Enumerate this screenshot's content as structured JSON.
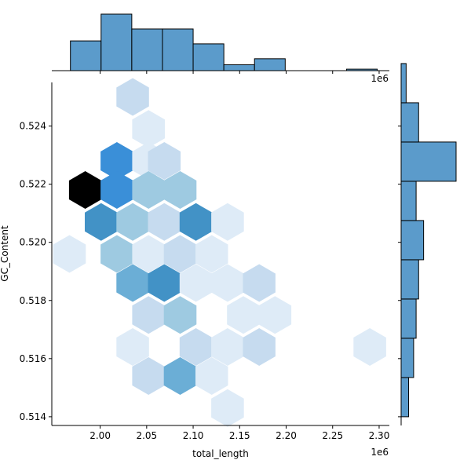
{
  "colors": {
    "bar_fill": "#5b9bcb",
    "bar_stroke": "#000000",
    "hex_palette": [
      "#deebf7",
      "#c6dbef",
      "#9ecae1",
      "#6baed6",
      "#4292c6",
      "#3a8fd8",
      "#2171b5",
      "#000000"
    ]
  },
  "chart_data": {
    "type": "hexbin",
    "subtype": "jointplot",
    "xlabel": "total_length",
    "ylabel": "GC_Content",
    "x_offset_label": "1e6",
    "top_offset_label": "1e6",
    "xlim": [
      1.948,
      2.311
    ],
    "ylim": [
      0.5137,
      0.5255
    ],
    "x_ticks": [
      {
        "value": 2.0,
        "label": "2.00"
      },
      {
        "value": 2.05,
        "label": "2.05"
      },
      {
        "value": 2.1,
        "label": "2.10"
      },
      {
        "value": 2.15,
        "label": "2.15"
      },
      {
        "value": 2.2,
        "label": "2.20"
      },
      {
        "value": 2.25,
        "label": "2.25"
      },
      {
        "value": 2.3,
        "label": "2.30"
      }
    ],
    "y_ticks": [
      {
        "value": 0.514,
        "label": "0.514"
      },
      {
        "value": 0.516,
        "label": "0.516"
      },
      {
        "value": 0.518,
        "label": "0.518"
      },
      {
        "value": 0.52,
        "label": "0.520"
      },
      {
        "value": 0.522,
        "label": "0.522"
      },
      {
        "value": 0.524,
        "label": "0.524"
      }
    ],
    "hexbins": [
      {
        "x": 2.035,
        "y": 0.525,
        "count": 2
      },
      {
        "x": 2.052,
        "y": 0.5239,
        "count": 1
      },
      {
        "x": 2.018,
        "y": 0.5228,
        "count": 6
      },
      {
        "x": 2.052,
        "y": 0.5228,
        "count": 1
      },
      {
        "x": 2.069,
        "y": 0.5228,
        "count": 2
      },
      {
        "x": 1.984,
        "y": 0.5218,
        "count": 8
      },
      {
        "x": 2.018,
        "y": 0.5218,
        "count": 6
      },
      {
        "x": 2.052,
        "y": 0.5218,
        "count": 3
      },
      {
        "x": 2.086,
        "y": 0.5218,
        "count": 3
      },
      {
        "x": 2.001,
        "y": 0.5207,
        "count": 5
      },
      {
        "x": 2.035,
        "y": 0.5207,
        "count": 3
      },
      {
        "x": 2.069,
        "y": 0.5207,
        "count": 2
      },
      {
        "x": 2.103,
        "y": 0.5207,
        "count": 5
      },
      {
        "x": 2.137,
        "y": 0.5207,
        "count": 1
      },
      {
        "x": 1.967,
        "y": 0.5196,
        "count": 1
      },
      {
        "x": 2.018,
        "y": 0.5196,
        "count": 3
      },
      {
        "x": 2.052,
        "y": 0.5196,
        "count": 1
      },
      {
        "x": 2.086,
        "y": 0.5196,
        "count": 2
      },
      {
        "x": 2.12,
        "y": 0.5196,
        "count": 1
      },
      {
        "x": 2.035,
        "y": 0.5186,
        "count": 4
      },
      {
        "x": 2.069,
        "y": 0.5186,
        "count": 5
      },
      {
        "x": 2.103,
        "y": 0.5186,
        "count": 1
      },
      {
        "x": 2.137,
        "y": 0.5186,
        "count": 1
      },
      {
        "x": 2.171,
        "y": 0.5186,
        "count": 2
      },
      {
        "x": 2.052,
        "y": 0.5175,
        "count": 2
      },
      {
        "x": 2.086,
        "y": 0.5175,
        "count": 3
      },
      {
        "x": 2.154,
        "y": 0.5175,
        "count": 1
      },
      {
        "x": 2.188,
        "y": 0.5175,
        "count": 1
      },
      {
        "x": 2.035,
        "y": 0.5164,
        "count": 1
      },
      {
        "x": 2.103,
        "y": 0.5164,
        "count": 2
      },
      {
        "x": 2.137,
        "y": 0.5164,
        "count": 1
      },
      {
        "x": 2.171,
        "y": 0.5164,
        "count": 2
      },
      {
        "x": 2.29,
        "y": 0.5164,
        "count": 1
      },
      {
        "x": 2.052,
        "y": 0.5154,
        "count": 2
      },
      {
        "x": 2.086,
        "y": 0.5154,
        "count": 4
      },
      {
        "x": 2.12,
        "y": 0.5154,
        "count": 1
      },
      {
        "x": 2.137,
        "y": 0.5143,
        "count": 1
      }
    ],
    "top_histogram": {
      "bins": [
        {
          "x0": 1.968,
          "x1": 2.001,
          "count": 10
        },
        {
          "x0": 2.001,
          "x1": 2.034,
          "count": 19
        },
        {
          "x0": 2.034,
          "x1": 2.067,
          "count": 14
        },
        {
          "x0": 2.067,
          "x1": 2.1,
          "count": 14
        },
        {
          "x0": 2.1,
          "x1": 2.133,
          "count": 9
        },
        {
          "x0": 2.133,
          "x1": 2.166,
          "count": 2
        },
        {
          "x0": 2.166,
          "x1": 2.199,
          "count": 4
        },
        {
          "x0": 2.199,
          "x1": 2.232,
          "count": 0
        },
        {
          "x0": 2.232,
          "x1": 2.265,
          "count": 0
        },
        {
          "x0": 2.265,
          "x1": 2.298,
          "count": 0.5
        }
      ],
      "ymax": 19
    },
    "right_histogram": {
      "bins": [
        {
          "y0": 0.514,
          "y1": 0.51535,
          "count": 3
        },
        {
          "y0": 0.51535,
          "y1": 0.5167,
          "count": 5
        },
        {
          "y0": 0.5167,
          "y1": 0.51805,
          "count": 6
        },
        {
          "y0": 0.51805,
          "y1": 0.5194,
          "count": 7
        },
        {
          "y0": 0.5194,
          "y1": 0.52075,
          "count": 9
        },
        {
          "y0": 0.52075,
          "y1": 0.5221,
          "count": 6
        },
        {
          "y0": 0.5221,
          "y1": 0.52345,
          "count": 22
        },
        {
          "y0": 0.52345,
          "y1": 0.5248,
          "count": 7
        },
        {
          "y0": 0.5248,
          "y1": 0.52615,
          "count": 2
        }
      ],
      "xmax": 22
    }
  }
}
